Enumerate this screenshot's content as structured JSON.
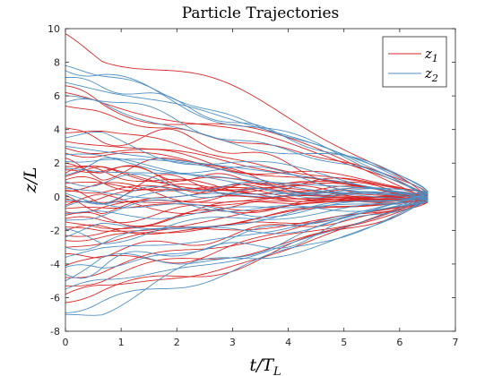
{
  "chart_data": {
    "type": "line",
    "title": "Particle Trajectories",
    "xlabel": "t/T",
    "xlabel_sub": "L",
    "ylabel": "z/L",
    "xlim": [
      0,
      7
    ],
    "ylim": [
      -8,
      10
    ],
    "xticks": [
      0,
      1,
      2,
      3,
      4,
      5,
      6,
      7
    ],
    "yticks": [
      -8,
      -6,
      -4,
      -2,
      0,
      2,
      4,
      6,
      8,
      10
    ],
    "x_end": 6.5,
    "legend_position": "top-right",
    "series": [
      {
        "name": "z",
        "subscript": "1",
        "color": "#d62728",
        "start_values": [
          9.7,
          6.6,
          6.2,
          5.4,
          4.1,
          3.8,
          3.3,
          2.9,
          2.6,
          2.3,
          2.0,
          1.8,
          1.6,
          1.4,
          1.2,
          1.0,
          0.8,
          0.6,
          0.4,
          0.3,
          0.1,
          -0.1,
          -0.3,
          -0.5,
          -0.7,
          -0.9,
          -1.1,
          -1.3,
          -1.5,
          -1.8,
          -2.0,
          -2.3,
          -2.6,
          -3.0,
          -3.4,
          -4.1,
          -4.8,
          -5.3,
          -5.8,
          -6.3
        ]
      },
      {
        "name": "z",
        "subscript": "2",
        "color": "#4f8fc0",
        "start_values": [
          7.8,
          7.5,
          7.1,
          6.8,
          6.0,
          5.6,
          3.5,
          3.0,
          2.5,
          2.1,
          1.7,
          1.3,
          0.9,
          0.5,
          0.2,
          -0.2,
          -0.6,
          -1.0,
          -1.4,
          -1.9,
          -2.4,
          -3.0,
          -3.6,
          -4.2,
          -4.6,
          -5.0,
          -5.5,
          -6.9,
          -7.0
        ]
      }
    ]
  }
}
